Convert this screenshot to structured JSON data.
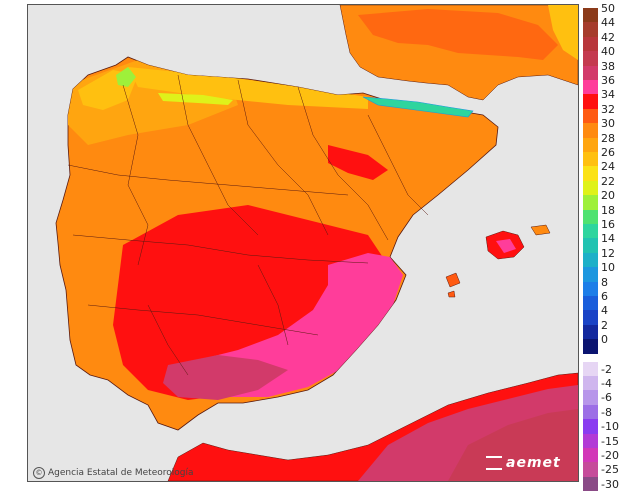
{
  "map": {
    "credit_text": "Agencia Estatal de Meteorología",
    "brand_text": "aemet",
    "background_sea": "#e6e6e6",
    "land_outline": "#5a1a10"
  },
  "legend": {
    "positive": [
      {
        "label": "50",
        "color": "#8b3a1a"
      },
      {
        "label": "44",
        "color": "#a63c2c"
      },
      {
        "label": "42",
        "color": "#b8363b"
      },
      {
        "label": "40",
        "color": "#c43a4f"
      },
      {
        "label": "38",
        "color": "#d23a6a"
      },
      {
        "label": "36",
        "color": "#ff3d9a"
      },
      {
        "label": "34",
        "color": "#ff1010"
      },
      {
        "label": "32",
        "color": "#ff5a12"
      },
      {
        "label": "30",
        "color": "#ff8a10"
      },
      {
        "label": "28",
        "color": "#ffa510"
      },
      {
        "label": "26",
        "color": "#ffc010"
      },
      {
        "label": "24",
        "color": "#fbe216"
      },
      {
        "label": "22",
        "color": "#dff21a"
      },
      {
        "label": "20",
        "color": "#9ef03a"
      },
      {
        "label": "18",
        "color": "#4fe270"
      },
      {
        "label": "16",
        "color": "#2ed59e"
      },
      {
        "label": "14",
        "color": "#21c3b1"
      },
      {
        "label": "12",
        "color": "#1db0c8"
      },
      {
        "label": "10",
        "color": "#1d97df"
      },
      {
        "label": "8",
        "color": "#1d7ee8"
      },
      {
        "label": "6",
        "color": "#1a5edb"
      },
      {
        "label": "4",
        "color": "#1a43c6"
      },
      {
        "label": "2",
        "color": "#13289e"
      },
      {
        "label": "0",
        "color": "#0b1470"
      }
    ],
    "negative": [
      {
        "label": "-2",
        "color": "#e6d6f4"
      },
      {
        "label": "-4",
        "color": "#cfb6ee"
      },
      {
        "label": "-6",
        "color": "#b796ea"
      },
      {
        "label": "-8",
        "color": "#9c6ee6"
      },
      {
        "label": "-10",
        "color": "#8a3cf0"
      },
      {
        "label": "-15",
        "color": "#b23ad6"
      },
      {
        "label": "-20",
        "color": "#d237b8"
      },
      {
        "label": "-25",
        "color": "#c64b9a"
      },
      {
        "label": "-30",
        "color": "#8a4a86"
      }
    ]
  }
}
